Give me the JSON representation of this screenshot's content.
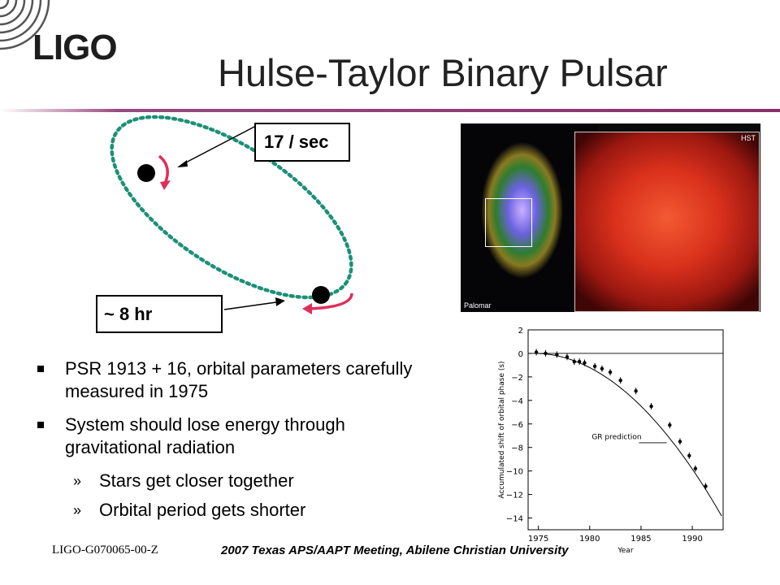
{
  "logo": {
    "text": "LIGO"
  },
  "slide": {
    "title": "Hulse-Taylor Binary Pulsar"
  },
  "diagram": {
    "spin_label": "17 / sec",
    "period_label": "~ 8 hr",
    "orbit_color": "#1b9077",
    "arrow_color": "#e02e5a"
  },
  "image": {
    "palomar_label": "Palomar",
    "hst_label": "HST"
  },
  "bullets": [
    {
      "text": "PSR 1913 + 16, orbital parameters carefully measured in 1975"
    },
    {
      "text": "System should lose energy through gravitational radiation"
    }
  ],
  "sub_bullets": [
    {
      "marker": "»",
      "text": "Stars get closer together"
    },
    {
      "marker": "»",
      "text": "Orbital period gets shorter"
    }
  ],
  "footer": {
    "doc_id": "LIGO-G070065-00-Z",
    "meeting": "2007 Texas APS/AAPT Meeting, Abilene Christian University"
  },
  "chart_data": {
    "type": "scatter",
    "title": "",
    "xlabel": "Year",
    "ylabel": "Accumulated shift of orbital phase (s)",
    "xlim": [
      1974,
      1993
    ],
    "ylim": [
      -15,
      2
    ],
    "xticks": [
      1975,
      1980,
      1985,
      1990
    ],
    "yticks": [
      2,
      0,
      -2,
      -4,
      -6,
      -8,
      -10,
      -12,
      -14
    ],
    "series": [
      {
        "values": [
          {
            "x": 1974.8,
            "y": 0.1
          },
          {
            "x": 1975.7,
            "y": 0.0
          },
          {
            "x": 1976.8,
            "y": -0.1
          },
          {
            "x": 1977.8,
            "y": -0.3
          },
          {
            "x": 1978.5,
            "y": -0.7
          },
          {
            "x": 1979.0,
            "y": -0.7
          },
          {
            "x": 1979.5,
            "y": -0.8
          },
          {
            "x": 1980.5,
            "y": -1.1
          },
          {
            "x": 1981.2,
            "y": -1.3
          },
          {
            "x": 1982.0,
            "y": -1.6
          },
          {
            "x": 1983.0,
            "y": -2.3
          },
          {
            "x": 1984.5,
            "y": -3.2
          },
          {
            "x": 1986.0,
            "y": -4.5
          },
          {
            "x": 1987.8,
            "y": -6.1
          },
          {
            "x": 1988.8,
            "y": -7.5
          },
          {
            "x": 1989.7,
            "y": -8.7
          },
          {
            "x": 1990.3,
            "y": -9.8
          },
          {
            "x": 1991.3,
            "y": -11.3
          }
        ]
      }
    ],
    "annotation": "GR prediction",
    "grid": false
  }
}
